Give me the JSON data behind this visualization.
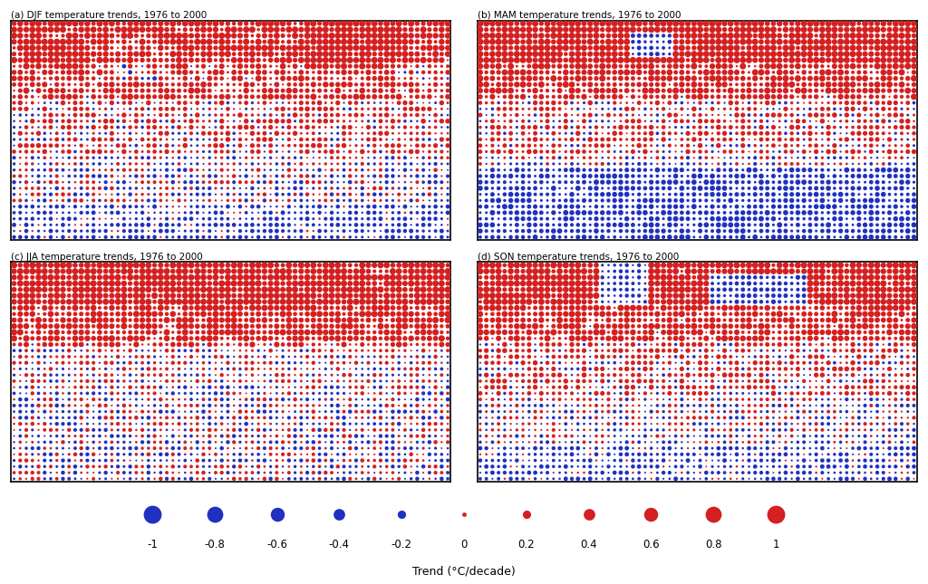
{
  "titles": [
    "(a) DJF temperature trends, 1976 to 2000",
    "(b) MAM temperature trends, 1976 to 2000",
    "(c) JJA temperature trends, 1976 to 2000",
    "(d) SON temperature trends, 1976 to 2000"
  ],
  "legend_values": [
    -1,
    -0.8,
    -0.6,
    -0.4,
    -0.2,
    0,
    0.2,
    0.4,
    0.6,
    0.8,
    1
  ],
  "legend_label": "Trend (°C/decade)",
  "background_color": "#ffffff",
  "dot_color_pos": "#d42020",
  "dot_color_neg": "#2030c0",
  "lon_step": 5,
  "lat_step": 5
}
